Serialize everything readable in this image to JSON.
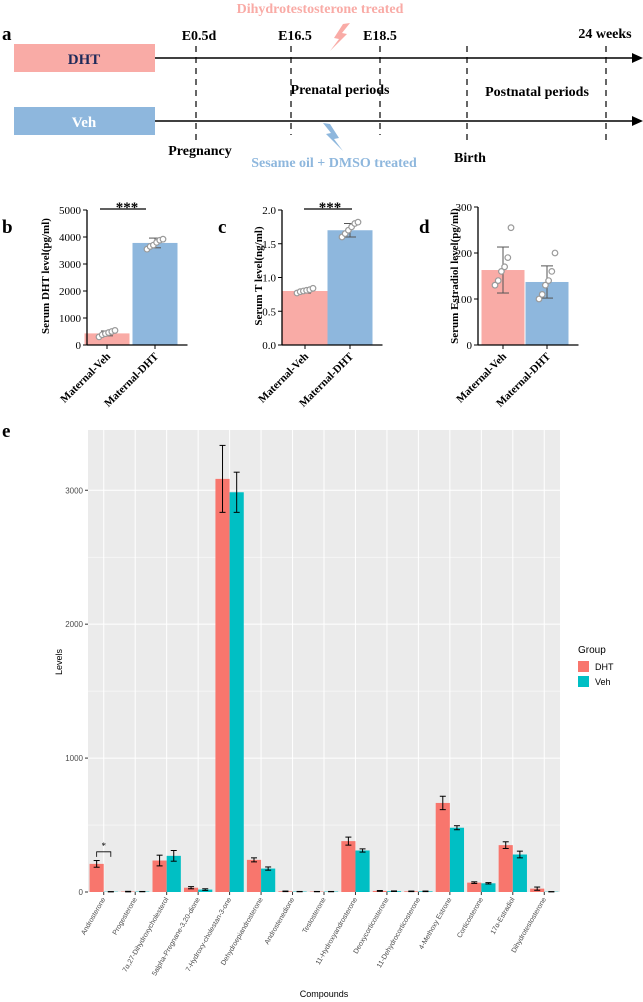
{
  "colors": {
    "dht": "#F8766D",
    "veh": "#00BFC4",
    "pink": "#F9ABA6",
    "blue": "#8EB7DD",
    "dot": "#9A9A9A"
  },
  "panel_a": {
    "letter": "a",
    "treated_top": "Dihydrotestosterone treated",
    "treated_bottom": "Sesame oil + DMSO treated",
    "dht_label": "DHT",
    "veh_label": "Veh",
    "timepoints": [
      "E0.5d",
      "E16.5",
      "E18.5",
      "24 weeks"
    ],
    "prenatal": "Prenatal periods",
    "postnatal": "Postnatal periods",
    "pregnancy": "Pregnancy",
    "birth": "Birth"
  },
  "chart_data": [
    {
      "id": "b",
      "letter": "b",
      "type": "bar",
      "categories": [
        "Maternal-Veh",
        "Maternal-DHT"
      ],
      "values": [
        430,
        3780
      ],
      "errors": [
        90,
        180
      ],
      "points": [
        [
          300,
          380,
          420,
          460,
          500,
          540
        ],
        [
          3550,
          3650,
          3700,
          3800,
          3880,
          3920
        ]
      ],
      "ylabel": "Serum DHT level(pg/ml)",
      "ylim": [
        0,
        5000
      ],
      "yticks": [
        "0",
        "1000",
        "2000",
        "3000",
        "4000",
        "5000"
      ],
      "significance": "***"
    },
    {
      "id": "c",
      "letter": "c",
      "type": "bar",
      "categories": [
        "Maternal-Veh",
        "Maternal-DHT"
      ],
      "values": [
        0.8,
        1.7
      ],
      "errors": [
        0.03,
        0.1
      ],
      "points": [
        [
          0.77,
          0.79,
          0.8,
          0.81,
          0.82,
          0.84
        ],
        [
          1.6,
          1.65,
          1.7,
          1.75,
          1.8,
          1.82
        ]
      ],
      "ylabel": "Serum T level(ng/ml)",
      "ylim": [
        0,
        2.0
      ],
      "yticks": [
        "0.0",
        "0.5",
        "1.0",
        "1.5",
        "2.0"
      ],
      "significance": "***"
    },
    {
      "id": "d",
      "letter": "d",
      "type": "bar",
      "categories": [
        "Maternal-Veh",
        "Maternal-DHT"
      ],
      "values": [
        163,
        137
      ],
      "errors": [
        50,
        35
      ],
      "points": [
        [
          130,
          140,
          160,
          170,
          190,
          255
        ],
        [
          100,
          110,
          130,
          140,
          160,
          200
        ]
      ],
      "ylabel": "Serum Estradiol level(pg/ml)",
      "ylim": [
        0,
        300
      ],
      "yticks": [
        "0",
        "100",
        "200",
        "300"
      ],
      "significance": ""
    },
    {
      "id": "e",
      "letter": "e",
      "type": "bar",
      "title": "",
      "xlabel": "Compounds",
      "ylabel": "Levels",
      "ylim": [
        0,
        3450
      ],
      "yticks": [
        "0",
        "1000",
        "2000",
        "3000"
      ],
      "legend_title": "Group",
      "categories": [
        "Androsterone",
        "Progesterone",
        "7α,27-Dihydroxycholesterol",
        "5alpha-Pregnane-3,20-dione",
        "7-Hydroxy-cholestan-3-one",
        "Dehydroepiandrosterone",
        "Androstenedione",
        "Testosterone",
        "11-Hydroxyandrosterone",
        "Deoxycorticosterone",
        "11-Dehydrocorticosterone",
        "4-Methoxy Estrone",
        "Corticosterone",
        "17α-Estradiol",
        "Dihydrotestosterone"
      ],
      "series": [
        {
          "name": "DHT",
          "values": [
            210,
            3,
            235,
            32,
            3085,
            240,
            5,
            3,
            380,
            8,
            5,
            665,
            70,
            350,
            25
          ],
          "errors": [
            25,
            2,
            40,
            8,
            250,
            15,
            2,
            1,
            30,
            3,
            2,
            50,
            6,
            25,
            12
          ]
        },
        {
          "name": "Veh",
          "values": [
            2,
            3,
            270,
            18,
            2985,
            175,
            3,
            3,
            310,
            6,
            5,
            480,
            65,
            280,
            2
          ],
          "errors": [
            1,
            1,
            40,
            6,
            150,
            12,
            1,
            1,
            12,
            2,
            2,
            15,
            5,
            25,
            1
          ]
        }
      ],
      "annotation": "*"
    }
  ]
}
